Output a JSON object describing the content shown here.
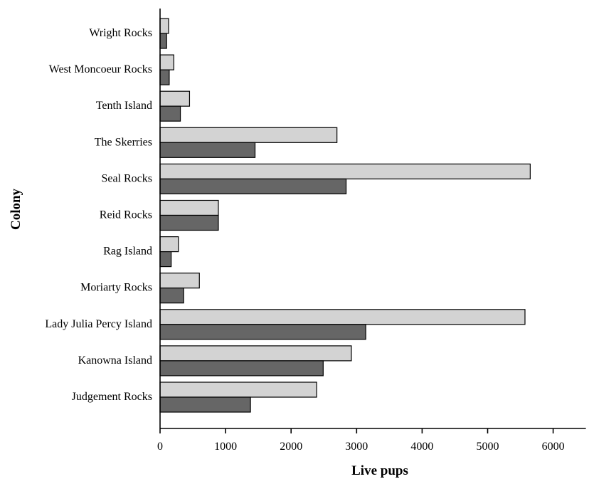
{
  "chart_data": {
    "type": "bar",
    "orientation": "horizontal",
    "title": "",
    "xlabel": "Live pups",
    "ylabel": "Colony",
    "xlim": [
      0,
      6500
    ],
    "xticks": [
      0,
      1000,
      2000,
      3000,
      4000,
      5000,
      6000
    ],
    "categories": [
      "Wright Rocks",
      "West Moncoeur Rocks",
      "Tenth Island",
      "The Skerries",
      "Seal Rocks",
      "Reid Rocks",
      "Rag Island",
      "Moriarty Rocks",
      "Lady Julia Percy Island",
      "Kanowna Island",
      "Judgement Rocks"
    ],
    "series": [
      {
        "color": "#d3d3d3",
        "values": [
          130,
          210,
          450,
          2700,
          5650,
          890,
          280,
          600,
          5570,
          2920,
          2390
        ]
      },
      {
        "color": "#666666",
        "values": [
          100,
          140,
          310,
          1450,
          2840,
          890,
          170,
          360,
          3140,
          2490,
          1380
        ]
      }
    ],
    "grid": false,
    "legend": "none"
  }
}
